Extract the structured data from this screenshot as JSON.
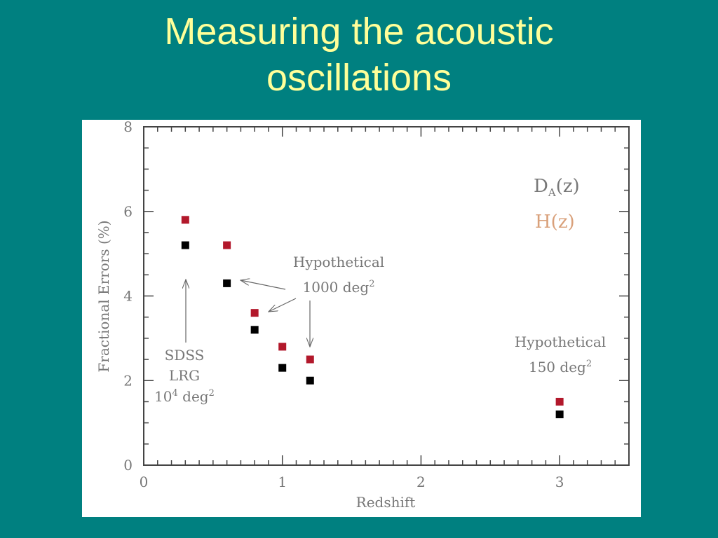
{
  "slide": {
    "title_line1": "Measuring the acoustic",
    "title_line2": "oscillations"
  },
  "chart_data": {
    "type": "scatter",
    "xlabel": "Redshift",
    "ylabel": "Fractional Errors (%)",
    "xlim": [
      0,
      3.5
    ],
    "ylim": [
      0,
      8
    ],
    "x_ticks": [
      0,
      1,
      2,
      3
    ],
    "y_ticks": [
      0,
      2,
      4,
      6,
      8
    ],
    "grid": false,
    "legend_position": "top-right",
    "series": [
      {
        "name": "D_A(z)",
        "legend_main": "D",
        "legend_sub": "A",
        "legend_rest": "(z)",
        "color": "#000000",
        "label_color": "#777777",
        "points": [
          {
            "x": 0.3,
            "y": 5.2
          },
          {
            "x": 0.6,
            "y": 4.3
          },
          {
            "x": 0.8,
            "y": 3.2
          },
          {
            "x": 1.0,
            "y": 2.3
          },
          {
            "x": 1.2,
            "y": 2.0
          },
          {
            "x": 3.0,
            "y": 1.2
          }
        ]
      },
      {
        "name": "H(z)",
        "color": "#b2182b",
        "label_color": "#d9a07a",
        "points": [
          {
            "x": 0.3,
            "y": 5.8
          },
          {
            "x": 0.6,
            "y": 5.2
          },
          {
            "x": 0.8,
            "y": 3.6
          },
          {
            "x": 1.0,
            "y": 2.8
          },
          {
            "x": 1.2,
            "y": 2.5
          },
          {
            "x": 3.0,
            "y": 1.5
          }
        ]
      }
    ],
    "annotations": {
      "hyp1000_line1": "Hypothetical",
      "hyp1000_line2_base": "1000 deg",
      "hyp1000_line2_sup": "2",
      "hyp150_line1": "Hypothetical",
      "hyp150_line2_base": "150 deg",
      "hyp150_line2_sup": "2",
      "sdss_line1": "SDSS",
      "sdss_line2": "LRG",
      "sdss_line3_a": "10",
      "sdss_line3_sup1": "4",
      "sdss_line3_b": " deg",
      "sdss_line3_sup2": "2"
    }
  }
}
